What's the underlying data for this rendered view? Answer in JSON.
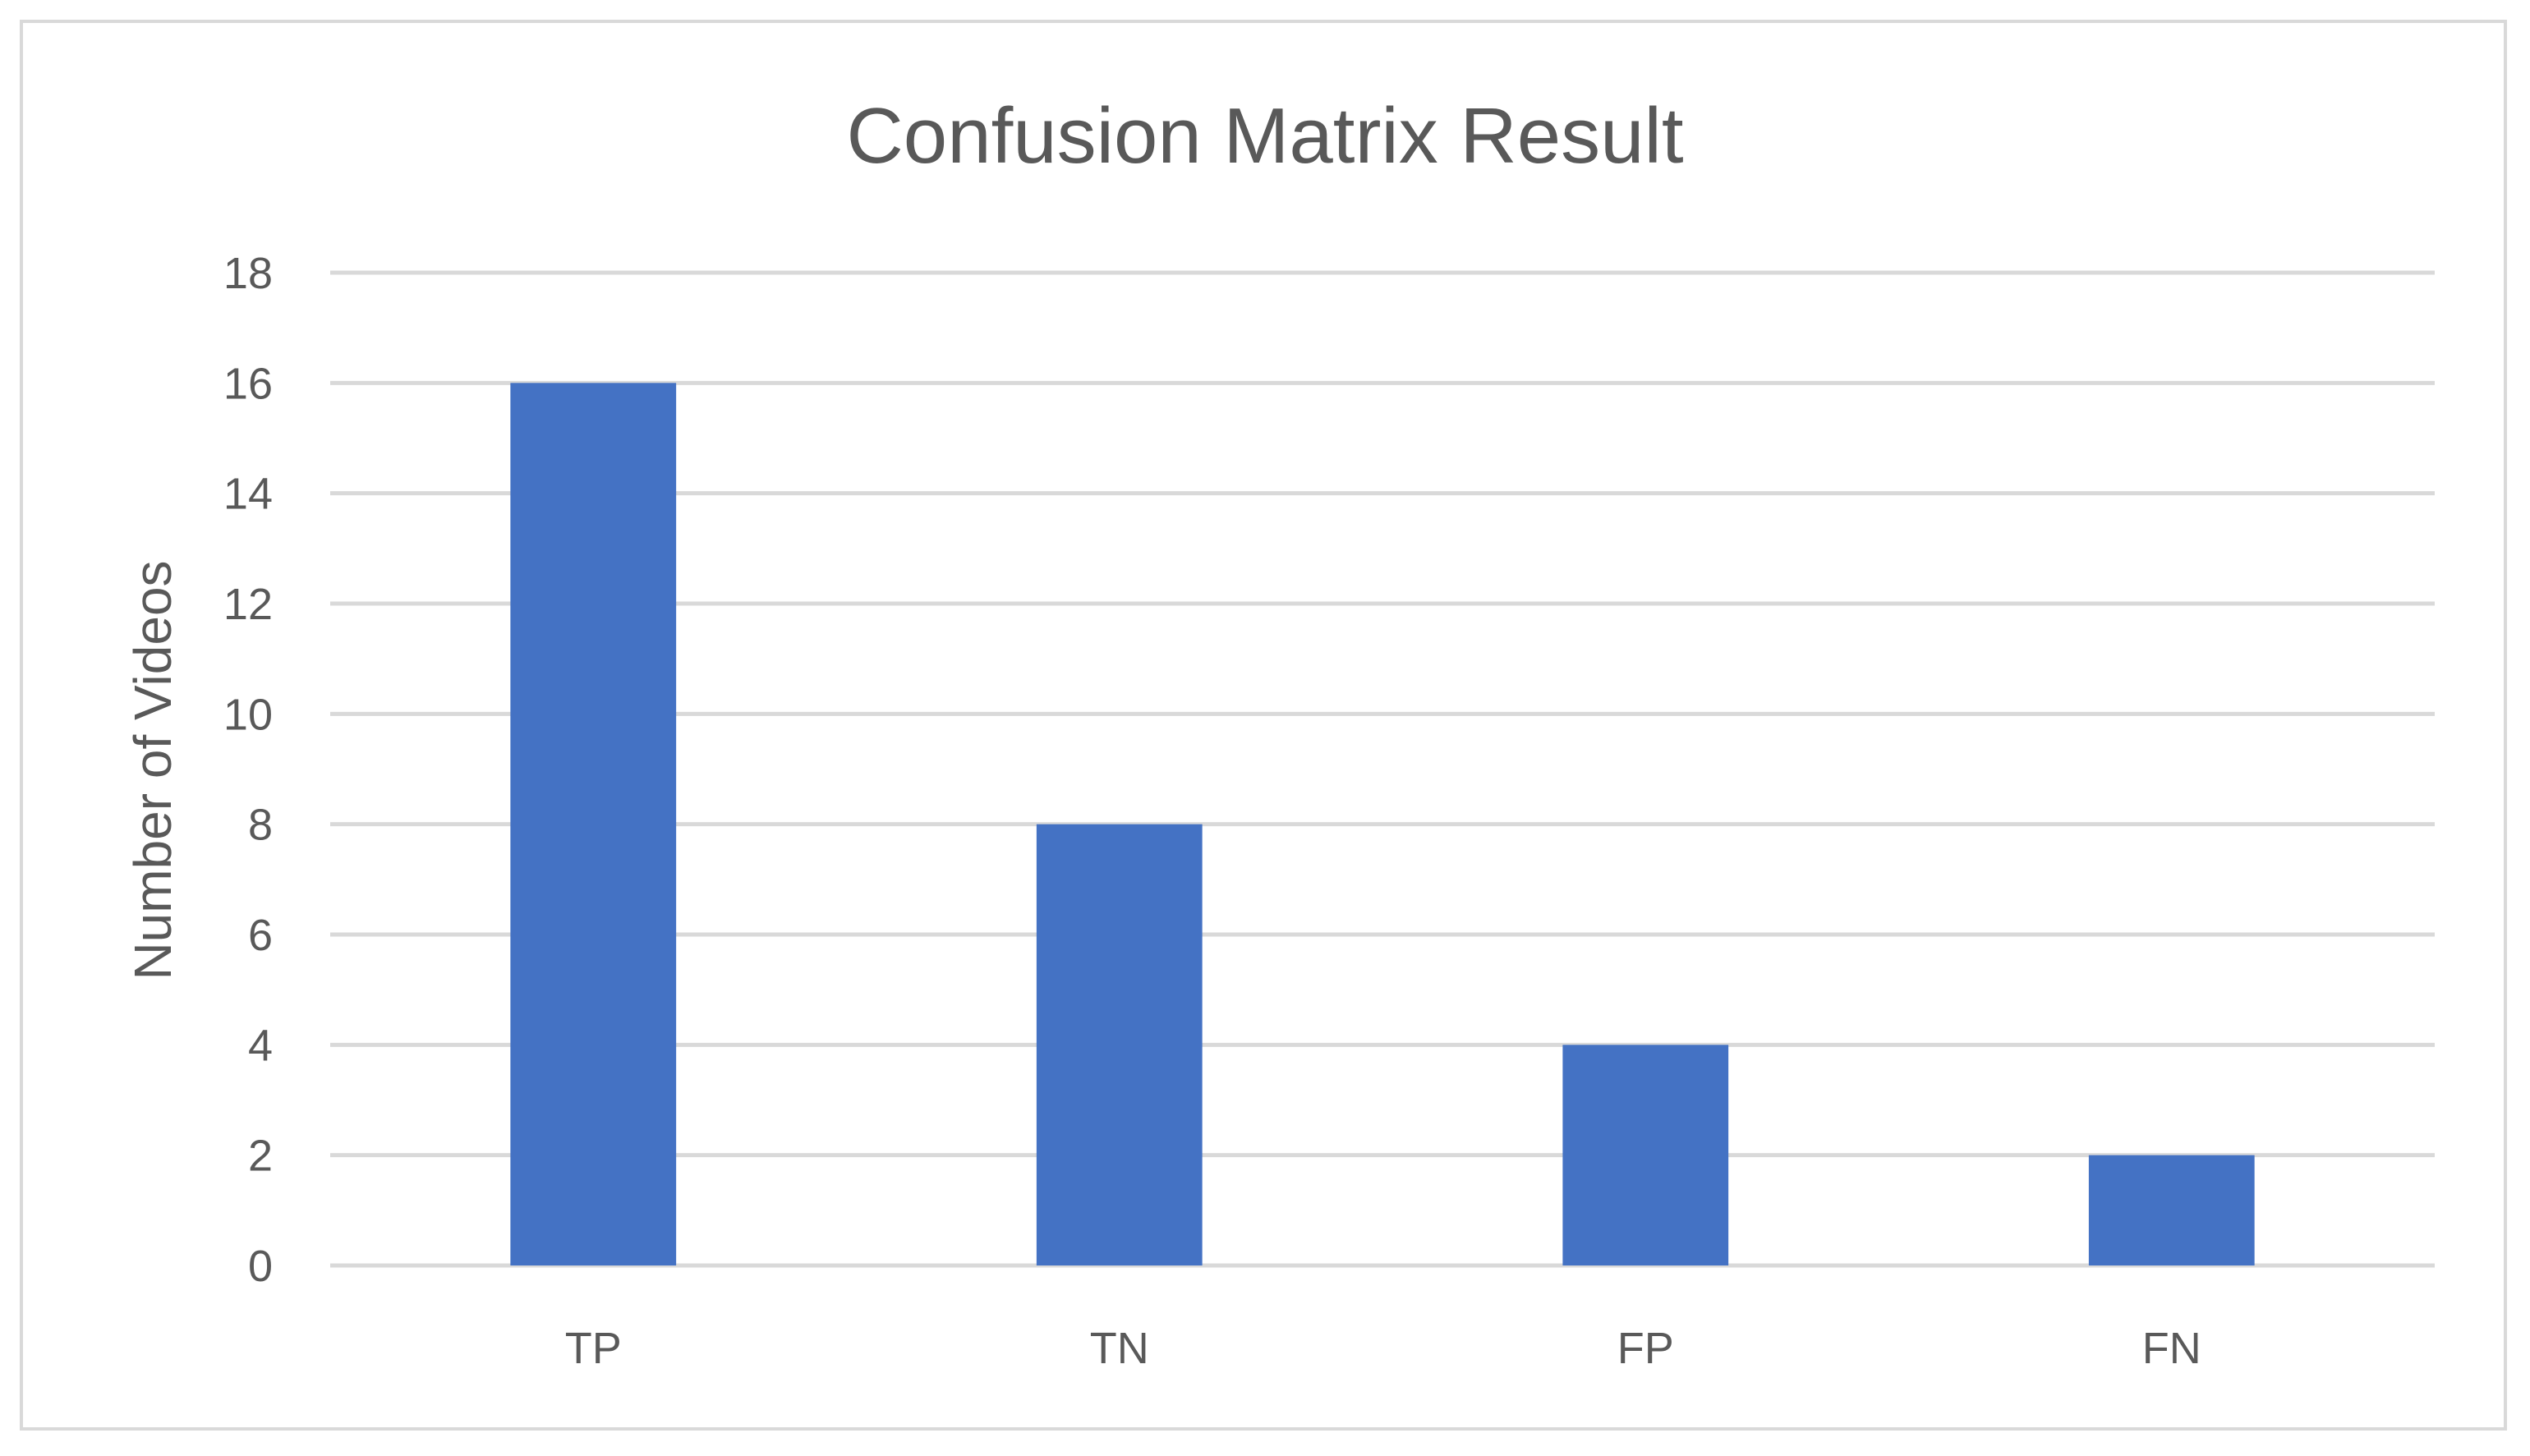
{
  "chart_data": {
    "type": "bar",
    "title": "Confusion Matrix Result",
    "xlabel": "",
    "ylabel": "Number of Videos",
    "categories": [
      "TP",
      "TN",
      "FP",
      "FN"
    ],
    "values": [
      16,
      8,
      4,
      2
    ],
    "yticks": [
      "0",
      "2",
      "4",
      "6",
      "8",
      "10",
      "12",
      "14",
      "16",
      "18"
    ],
    "ylim": [
      0,
      18
    ],
    "grid": true,
    "legend": "none",
    "bar_color": "#4472C4"
  }
}
